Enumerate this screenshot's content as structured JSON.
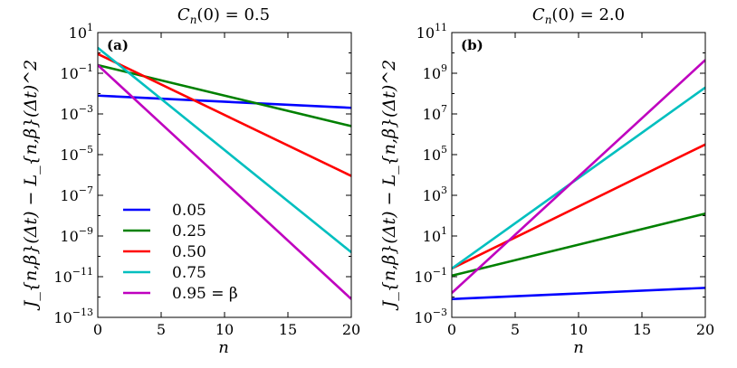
{
  "chart_data": [
    {
      "type": "line",
      "panel_label": "(a)",
      "title": "C_n(0) = 0.5",
      "title_parts": {
        "var": "C",
        "sub": "n",
        "arg": "(0) = 0.5"
      },
      "xlabel": "n",
      "ylabel": "J_{n,β}(Δt) − L_{n,β}(Δt)^2",
      "yscale": "log",
      "xlim": [
        0,
        20
      ],
      "ylim_exp": [
        -13,
        1
      ],
      "x_ticks": [
        0,
        5,
        10,
        15,
        20
      ],
      "y_tick_exponents": [
        1,
        -1,
        -3,
        -5,
        -7,
        -9,
        -11,
        -13
      ],
      "legend_location": "lower-left",
      "series": [
        {
          "name": "0.05",
          "color": "#0000ff",
          "x": [
            0,
            20
          ],
          "log10_y": [
            -2.1,
            -2.7
          ]
        },
        {
          "name": "0.25",
          "color": "#008000",
          "x": [
            0,
            20
          ],
          "log10_y": [
            -0.6,
            -3.6
          ]
        },
        {
          "name": "0.50",
          "color": "#ff0000",
          "x": [
            0,
            20
          ],
          "log10_y": [
            -0.05,
            -6.05
          ]
        },
        {
          "name": "0.75",
          "color": "#00bfbf",
          "x": [
            0,
            20
          ],
          "log10_y": [
            0.25,
            -9.8
          ]
        },
        {
          "name": "0.95 = β",
          "color": "#bf00bf",
          "x": [
            0,
            20
          ],
          "log10_y": [
            -0.6,
            -12.1
          ]
        }
      ]
    },
    {
      "type": "line",
      "panel_label": "(b)",
      "title": "C_n(0) = 2.0",
      "title_parts": {
        "var": "C",
        "sub": "n",
        "arg": "(0) = 2.0"
      },
      "xlabel": "n",
      "ylabel": "J_{n,β}(Δt) − L_{n,β}(Δt)^2",
      "yscale": "log",
      "xlim": [
        0,
        20
      ],
      "ylim_exp": [
        -3,
        11
      ],
      "x_ticks": [
        0,
        5,
        10,
        15,
        20
      ],
      "y_tick_exponents": [
        11,
        9,
        7,
        5,
        3,
        1,
        -1,
        -3
      ],
      "series": [
        {
          "name": "0.05",
          "color": "#0000ff",
          "x": [
            0,
            20
          ],
          "log10_y": [
            -2.1,
            -1.55
          ]
        },
        {
          "name": "0.25",
          "color": "#008000",
          "x": [
            0,
            20
          ],
          "log10_y": [
            -0.95,
            2.1
          ]
        },
        {
          "name": "0.50",
          "color": "#ff0000",
          "x": [
            0,
            20
          ],
          "log10_y": [
            -0.6,
            5.5
          ]
        },
        {
          "name": "0.75",
          "color": "#00bfbf",
          "x": [
            0,
            20
          ],
          "log10_y": [
            -0.6,
            8.3
          ]
        },
        {
          "name": "0.95 = β",
          "color": "#bf00bf",
          "x": [
            0,
            20
          ],
          "log10_y": [
            -1.8,
            9.65
          ]
        }
      ]
    }
  ]
}
